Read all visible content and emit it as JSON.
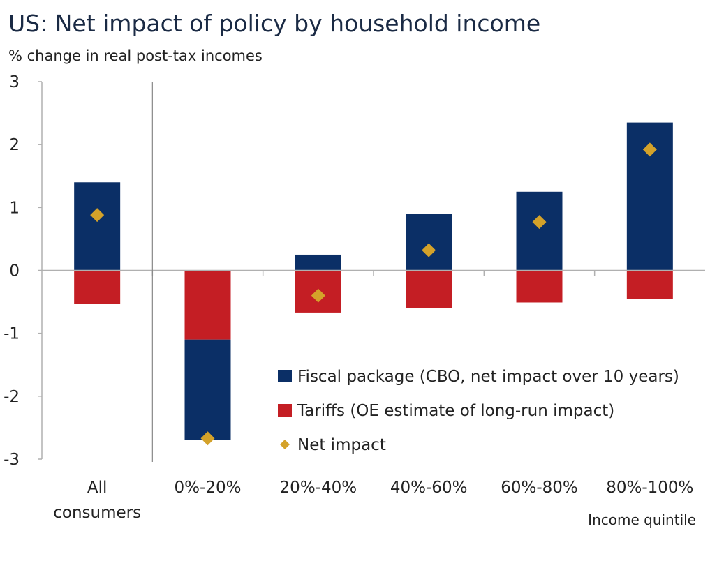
{
  "colors": {
    "fiscal": "#0b2f66",
    "tariffs": "#c41e24",
    "net": "#d4a22a",
    "axis": "#b0b0b0",
    "separator": "#888888"
  },
  "chart_data": {
    "type": "bar",
    "title": "US: Net impact of policy by household income",
    "subtitle": "% change in real post-tax incomes",
    "xlabel": "Income quintile",
    "ylabel": "% change in real post-tax incomes",
    "ylim": [
      -3,
      3
    ],
    "yticks": [
      "3",
      "2",
      "1",
      "0",
      "-1",
      "-2",
      "-3"
    ],
    "categories": [
      [
        "All",
        "consumers"
      ],
      [
        "0%-20%"
      ],
      [
        "20%-40%"
      ],
      [
        "40%-60%"
      ],
      [
        "60%-80%"
      ],
      [
        "80%-100%"
      ]
    ],
    "series": [
      {
        "name": "Fiscal package (CBO, net impact over 10 years)",
        "kind": "bar",
        "values": [
          1.4,
          -1.6,
          0.25,
          0.9,
          1.25,
          2.35
        ]
      },
      {
        "name": "Tariffs (OE estimate of long-run impact)",
        "kind": "bar",
        "values": [
          -0.53,
          -1.1,
          -0.67,
          -0.6,
          -0.51,
          -0.45
        ]
      },
      {
        "name": "Net impact",
        "kind": "marker",
        "values": [
          0.88,
          -2.67,
          -0.4,
          0.32,
          0.77,
          1.92
        ]
      }
    ],
    "legend_position": "bottom-right"
  }
}
